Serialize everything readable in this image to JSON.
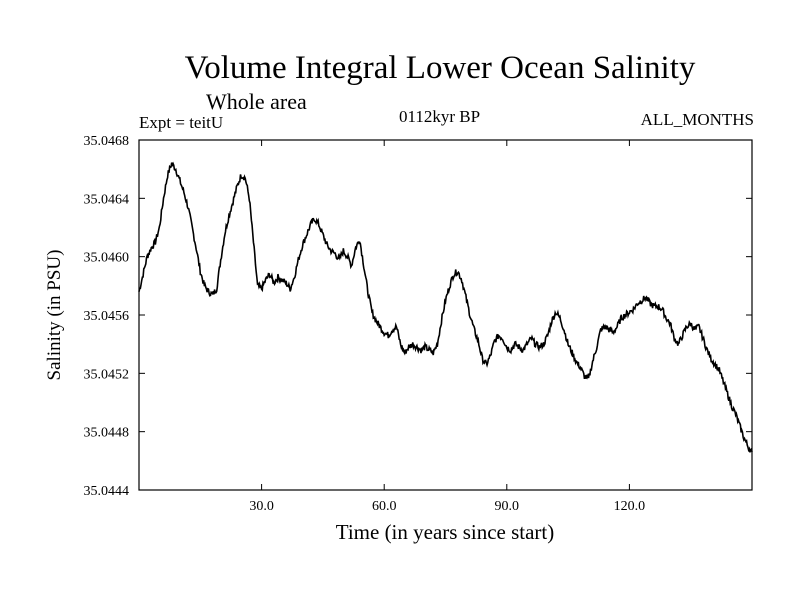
{
  "chart_data": {
    "type": "line",
    "title": "Volume Integral Lower Ocean Salinity",
    "subtitle": "Whole area",
    "left_label": "Expt = teitU",
    "center_label": "0112kyr BP",
    "right_label": "ALL_MONTHS",
    "xlabel": "Time (in years since start)",
    "ylabel": "Salinity (in PSU)",
    "xlim": [
      0,
      150
    ],
    "ylim": [
      35.0444,
      35.0468
    ],
    "x_ticks": [
      30,
      60,
      90,
      120
    ],
    "x_tick_labels": [
      "30.0",
      "60.0",
      "90.0",
      "120.0"
    ],
    "y_ticks": [
      35.0444,
      35.0448,
      35.0452,
      35.0456,
      35.046,
      35.0464,
      35.0468
    ],
    "y_tick_labels": [
      "35.0444",
      "35.0448",
      "35.0452",
      "35.0456",
      "35.0460",
      "35.0464",
      "35.0468"
    ],
    "grid": false,
    "series": [
      {
        "name": "Salinity",
        "x": [
          0,
          1,
          2,
          3,
          4,
          5,
          6,
          7,
          8,
          9,
          10,
          11,
          12,
          13,
          14,
          15,
          16,
          17,
          18,
          19,
          20,
          21,
          22,
          23,
          24,
          25,
          26,
          27,
          28,
          29,
          30,
          31,
          32,
          33,
          34,
          35,
          36,
          37,
          38,
          39,
          40,
          41,
          42,
          43,
          44,
          45,
          46,
          47,
          48,
          49,
          50,
          51,
          52,
          53,
          54,
          55,
          56,
          57,
          58,
          59,
          60,
          61,
          62,
          63,
          64,
          65,
          66,
          67,
          68,
          69,
          70,
          71,
          72,
          73,
          74,
          75,
          76,
          77,
          78,
          79,
          80,
          81,
          82,
          83,
          84,
          85,
          86,
          87,
          88,
          89,
          90,
          91,
          92,
          93,
          94,
          95,
          96,
          97,
          98,
          99,
          100,
          101,
          102,
          103,
          104,
          105,
          106,
          107,
          108,
          109,
          110,
          111,
          112,
          113,
          114,
          115,
          116,
          117,
          118,
          119,
          120,
          121,
          122,
          123,
          124,
          125,
          126,
          127,
          128,
          129,
          130,
          131,
          132,
          133,
          134,
          135,
          136,
          137,
          138,
          139,
          140,
          141,
          142,
          143,
          144,
          145,
          146,
          147,
          148,
          149,
          150
        ],
        "values": [
          35.04576,
          35.04588,
          35.046,
          35.04606,
          35.0461,
          35.0462,
          35.0464,
          35.04656,
          35.04664,
          35.0466,
          35.04652,
          35.04644,
          35.04634,
          35.0462,
          35.04606,
          35.0459,
          35.0458,
          35.04576,
          35.04574,
          35.04578,
          35.04598,
          35.04616,
          35.04628,
          35.04638,
          35.04648,
          35.04656,
          35.04654,
          35.0464,
          35.0461,
          35.0458,
          35.04578,
          35.04584,
          35.04588,
          35.04582,
          35.04586,
          35.04584,
          35.04582,
          35.04578,
          35.04586,
          35.04598,
          35.04608,
          35.04615,
          35.04622,
          35.04626,
          35.04622,
          35.04615,
          35.04608,
          35.04604,
          35.04602,
          35.04598,
          35.04604,
          35.046,
          35.04594,
          35.04606,
          35.04612,
          35.04594,
          35.04576,
          35.04562,
          35.04556,
          35.04552,
          35.04548,
          35.04546,
          35.0455,
          35.04552,
          35.0454,
          35.04534,
          35.04538,
          35.0454,
          35.04538,
          35.04536,
          35.04538,
          35.04536,
          35.04534,
          35.0454,
          35.04556,
          35.0457,
          35.0458,
          35.04588,
          35.0459,
          35.04584,
          35.04572,
          35.0456,
          35.0455,
          35.04542,
          35.0453,
          35.04526,
          35.04532,
          35.04542,
          35.04546,
          35.04544,
          35.04538,
          35.04536,
          35.0454,
          35.04538,
          35.04536,
          35.0454,
          35.04544,
          35.0454,
          35.04538,
          35.0454,
          35.04546,
          35.04556,
          35.04562,
          35.04558,
          35.0455,
          35.0454,
          35.04534,
          35.04528,
          35.04524,
          35.04518,
          35.04516,
          35.04528,
          35.04538,
          35.0455,
          35.04552,
          35.0455,
          35.04548,
          35.04552,
          35.04558,
          35.0456,
          35.04562,
          35.04564,
          35.04568,
          35.0457,
          35.04572,
          35.04568,
          35.04566,
          35.04566,
          35.04564,
          35.04558,
          35.04554,
          35.04544,
          35.0454,
          35.04546,
          35.04552,
          35.04554,
          35.0455,
          35.04552,
          35.04544,
          35.04536,
          35.0453,
          35.04526,
          35.04522,
          35.04514,
          35.04506,
          35.04498,
          35.04492,
          35.04484,
          35.04476,
          35.0447,
          35.04466
        ]
      }
    ]
  }
}
